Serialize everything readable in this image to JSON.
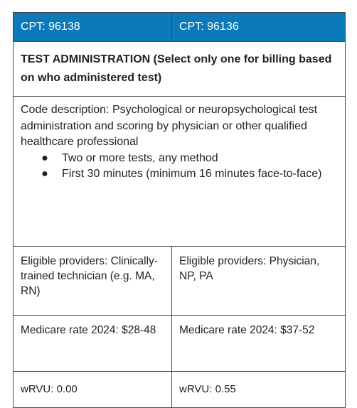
{
  "header": {
    "col1": "CPT: 96138",
    "col2": "CPT: 96136"
  },
  "section": {
    "title": "TEST ADMINISTRATION (Select only one for billing based on who administered test)"
  },
  "description": {
    "text": "Code description: Psychological or neuropsychological test administration and scoring by physician or other qualified healthcare professional",
    "bullets": [
      "Two or more tests, any method",
      "First 30 minutes (minimum 16 minutes face-to-face)"
    ]
  },
  "providers": {
    "col1": "Eligible providers: Clinically-trained technician (e.g. MA, RN)",
    "col2": "Eligible providers: Physician, NP, PA"
  },
  "medicare": {
    "col1": "Medicare rate 2024: $28-48",
    "col2": "Medicare rate 2024: $37-52"
  },
  "wrvu": {
    "col1": "wRVU: 0.00",
    "col2": "wRVU: 0.55"
  },
  "colors": {
    "header_bg": "#0a7ab8",
    "header_text": "#ffffff",
    "border": "#4a4a4a"
  }
}
